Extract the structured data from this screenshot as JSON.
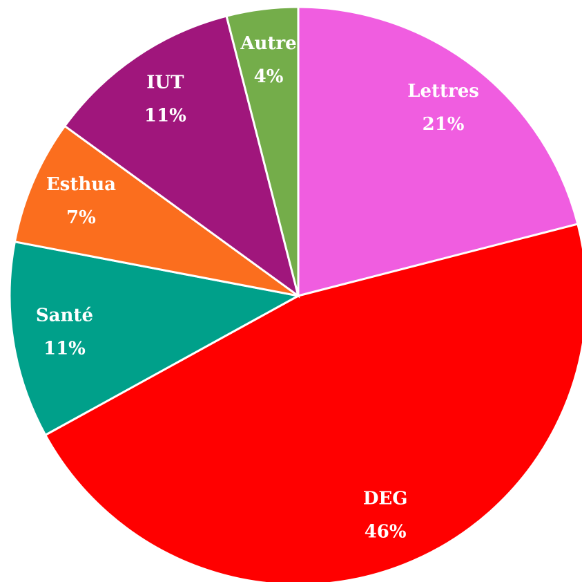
{
  "chart_data": {
    "type": "pie",
    "categories": [
      "Lettres",
      "DEG",
      "Santé",
      "Esthua",
      "IUT",
      "Autre"
    ],
    "values": [
      21,
      46,
      11,
      7,
      11,
      4
    ],
    "value_labels": [
      "21%",
      "46%",
      "11%",
      "7%",
      "11%",
      "4%"
    ],
    "colors": [
      "#f05de0",
      "#ff0000",
      "#00a08a",
      "#fb6e1e",
      "#a0167c",
      "#74ad4a"
    ]
  }
}
